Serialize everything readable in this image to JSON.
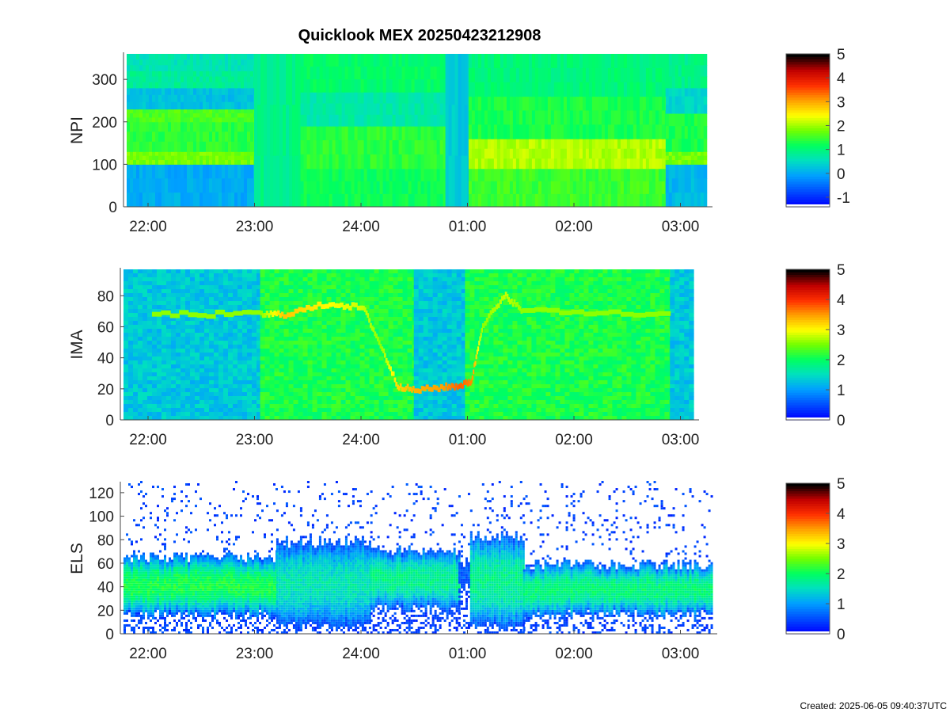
{
  "title": "Quicklook MEX 20250423212908",
  "created": "Created: 2025-06-05 09:40:37UTC",
  "colormap": [
    "#0000ff",
    "#0050ff",
    "#00a0ff",
    "#00e0c0",
    "#00ff60",
    "#70ff00",
    "#ffff00",
    "#ffa000",
    "#ff3000",
    "#c00000",
    "#000000"
  ],
  "chart_data": [
    {
      "type": "heatmap",
      "name": "NPI",
      "ylabel": "NPI",
      "xlabel": "",
      "x_tick_labels": [
        "22:00",
        "23:00",
        "24:00",
        "01:00",
        "02:00",
        "03:00"
      ],
      "y_ticks": [
        0,
        100,
        200,
        300
      ],
      "ylim": [
        0,
        360
      ],
      "colorbar": {
        "ticks": [
          -1,
          0,
          1,
          2,
          3,
          4,
          5
        ],
        "range": [
          -1.4,
          5.0
        ]
      },
      "segments": [
        {
          "t0": 0.0,
          "t1": 0.22,
          "bands": [
            [
              0,
              100,
              0.0
            ],
            [
              100,
              130,
              1.8
            ],
            [
              130,
              200,
              1.4
            ],
            [
              200,
              230,
              1.6
            ],
            [
              230,
              280,
              0.2
            ],
            [
              280,
              320,
              0.8
            ],
            [
              320,
              360,
              0.6
            ]
          ]
        },
        {
          "t0": 0.22,
          "t1": 0.3,
          "bands": [
            [
              0,
              360,
              0.9
            ]
          ]
        },
        {
          "t0": 0.3,
          "t1": 0.55,
          "bands": [
            [
              0,
              90,
              1.2
            ],
            [
              90,
              190,
              1.4
            ],
            [
              190,
              270,
              0.7
            ],
            [
              270,
              360,
              1.1
            ]
          ]
        },
        {
          "t0": 0.55,
          "t1": 0.59,
          "bands": [
            [
              0,
              360,
              0.3
            ]
          ]
        },
        {
          "t0": 0.59,
          "t1": 0.93,
          "bands": [
            [
              0,
              90,
              1.5
            ],
            [
              90,
              160,
              2.1
            ],
            [
              160,
              260,
              1.3
            ],
            [
              260,
              360,
              1.0
            ]
          ]
        },
        {
          "t0": 0.93,
          "t1": 1.0,
          "bands": [
            [
              0,
              100,
              0.1
            ],
            [
              100,
              130,
              1.8
            ],
            [
              130,
              220,
              1.3
            ],
            [
              220,
              280,
              0.4
            ],
            [
              280,
              360,
              0.9
            ]
          ]
        }
      ]
    },
    {
      "type": "heatmap",
      "name": "IMA",
      "ylabel": "IMA",
      "xlabel": "",
      "x_tick_labels": [
        "22:00",
        "23:00",
        "24:00",
        "01:00",
        "02:00",
        "03:00"
      ],
      "y_ticks": [
        0,
        20,
        40,
        60,
        80
      ],
      "ylim": [
        0,
        97
      ],
      "colorbar": {
        "ticks": [
          0,
          1,
          2,
          3,
          4,
          5
        ],
        "range": [
          0,
          5.0
        ]
      },
      "background_segments": [
        {
          "t0": 0.0,
          "t1": 0.24,
          "level": 1.3
        },
        {
          "t0": 0.24,
          "t1": 0.51,
          "level": 2.1
        },
        {
          "t0": 0.51,
          "t1": 0.6,
          "level": 1.3
        },
        {
          "t0": 0.6,
          "t1": 0.96,
          "level": 2.1
        },
        {
          "t0": 0.96,
          "t1": 1.0,
          "level": 1.3
        }
      ],
      "line": [
        [
          0.05,
          68,
          2.6
        ],
        [
          0.24,
          68,
          2.6
        ],
        [
          0.28,
          68,
          3.3
        ],
        [
          0.36,
          75,
          3.0
        ],
        [
          0.42,
          72,
          2.8
        ],
        [
          0.45,
          48,
          2.6
        ],
        [
          0.48,
          22,
          3.2
        ],
        [
          0.51,
          19,
          3.4
        ],
        [
          0.56,
          21,
          3.5
        ],
        [
          0.59,
          22,
          3.8
        ],
        [
          0.61,
          25,
          3.6
        ],
        [
          0.63,
          62,
          2.6
        ],
        [
          0.67,
          80,
          2.8
        ],
        [
          0.7,
          70,
          2.6
        ],
        [
          0.96,
          68,
          2.6
        ]
      ]
    },
    {
      "type": "heatmap",
      "name": "ELS",
      "ylabel": "ELS",
      "xlabel": "",
      "x_tick_labels": [
        "22:00",
        "23:00",
        "24:00",
        "01:00",
        "02:00",
        "03:00"
      ],
      "y_ticks": [
        0,
        20,
        40,
        60,
        80,
        100,
        120
      ],
      "ylim": [
        0,
        128
      ],
      "colorbar": {
        "ticks": [
          0,
          1,
          2,
          3,
          4,
          5
        ],
        "range": [
          0,
          5.0
        ]
      },
      "band_profile": [
        {
          "t0": 0.0,
          "t1": 0.26,
          "lo": 15,
          "hi": 65,
          "core": 2.1
        },
        {
          "t0": 0.26,
          "t1": 0.42,
          "lo": 5,
          "hi": 78,
          "core": 1.6
        },
        {
          "t0": 0.42,
          "t1": 0.57,
          "lo": 20,
          "hi": 70,
          "core": 1.8
        },
        {
          "t0": 0.57,
          "t1": 0.59,
          "lo": 40,
          "hi": 60,
          "core": 0.6
        },
        {
          "t0": 0.59,
          "t1": 0.68,
          "lo": 5,
          "hi": 82,
          "core": 1.8
        },
        {
          "t0": 0.68,
          "t1": 1.0,
          "lo": 15,
          "hi": 58,
          "core": 1.9
        }
      ]
    }
  ]
}
